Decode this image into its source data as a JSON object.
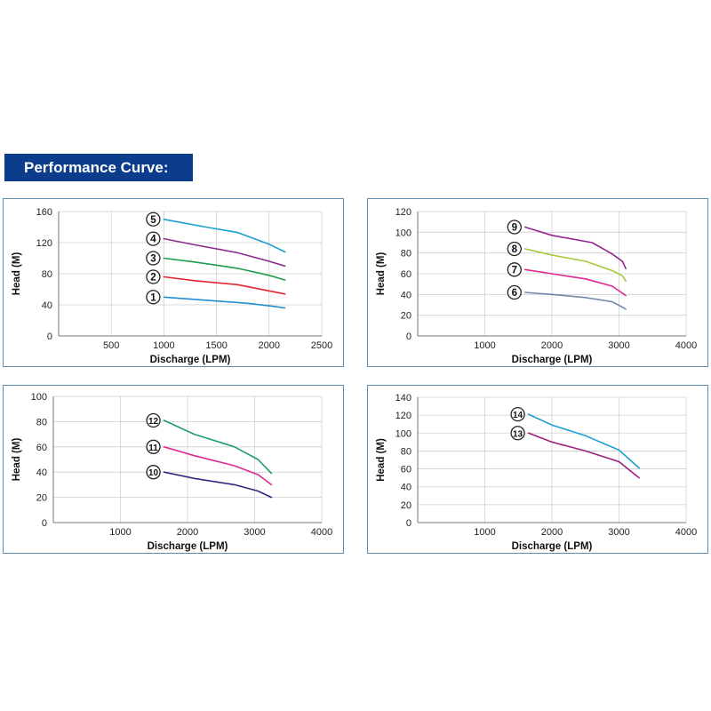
{
  "header": {
    "title": "Performance Curve:"
  },
  "chart_data": [
    {
      "type": "line",
      "xlabel": "Discharge (LPM)",
      "ylabel": "Head (M)",
      "xlim": [
        0,
        2500
      ],
      "ylim": [
        0,
        160
      ],
      "xticks": [
        0,
        500,
        1000,
        1500,
        2000,
        2500
      ],
      "xtick_labels": [
        "",
        "500",
        "1000",
        "1500",
        "2000",
        "2500"
      ],
      "yticks": [
        0,
        40,
        80,
        120,
        160
      ],
      "ytick_labels": [
        "0",
        "40",
        "80",
        "120",
        "160"
      ],
      "grid": true,
      "series": [
        {
          "name": "1",
          "color": "#1f8fd1",
          "x": [
            1000,
            1400,
            1800,
            2050,
            2150
          ],
          "y": [
            50,
            46,
            42,
            38,
            36
          ]
        },
        {
          "name": "2",
          "color": "#e3262e",
          "x": [
            1000,
            1300,
            1700,
            2000,
            2150
          ],
          "y": [
            76,
            71,
            66,
            58,
            54
          ]
        },
        {
          "name": "3",
          "color": "#1b9e4b",
          "x": [
            1000,
            1300,
            1700,
            2000,
            2150
          ],
          "y": [
            100,
            95,
            87,
            78,
            72
          ]
        },
        {
          "name": "4",
          "color": "#8e2a8c",
          "x": [
            1000,
            1300,
            1700,
            2000,
            2150
          ],
          "y": [
            125,
            117,
            107,
            96,
            90
          ]
        },
        {
          "name": "5",
          "color": "#1aa0cf",
          "x": [
            1000,
            1400,
            1700,
            2000,
            2150
          ],
          "y": [
            150,
            140,
            133,
            118,
            108
          ]
        }
      ]
    },
    {
      "type": "line",
      "xlabel": "Discharge (LPM)",
      "ylabel": "Head (M)",
      "xlim": [
        0,
        4000
      ],
      "ylim": [
        0,
        120
      ],
      "xticks": [
        0,
        1000,
        2000,
        3000,
        4000
      ],
      "xtick_labels": [
        "",
        "1000",
        "2000",
        "3000",
        "4000"
      ],
      "yticks": [
        0,
        20,
        40,
        60,
        80,
        100,
        120
      ],
      "ytick_labels": [
        "0",
        "20",
        "40",
        "60",
        "80",
        "100",
        "120"
      ],
      "grid": true,
      "series": [
        {
          "name": "6",
          "color": "#7288a8",
          "x": [
            1600,
            2000,
            2500,
            2900,
            3100
          ],
          "y": [
            42,
            40,
            37,
            33,
            26
          ]
        },
        {
          "name": "7",
          "color": "#e0278f",
          "x": [
            1600,
            2000,
            2500,
            2900,
            3100
          ],
          "y": [
            64,
            60,
            55,
            48,
            39
          ]
        },
        {
          "name": "8",
          "color": "#a4c936",
          "x": [
            1600,
            2000,
            2500,
            2900,
            3050,
            3100
          ],
          "y": [
            84,
            78,
            72,
            63,
            58,
            53
          ]
        },
        {
          "name": "9",
          "color": "#96258e",
          "x": [
            1600,
            2000,
            2600,
            2900,
            3050,
            3100
          ],
          "y": [
            105,
            97,
            90,
            79,
            72,
            65
          ]
        }
      ]
    },
    {
      "type": "line",
      "xlabel": "Discharge (LPM)",
      "ylabel": "Head (M)",
      "xlim": [
        0,
        4000
      ],
      "ylim": [
        0,
        100
      ],
      "xticks": [
        0,
        1000,
        2000,
        3000,
        4000
      ],
      "xtick_labels": [
        "",
        "1000",
        "2000",
        "3000",
        "4000"
      ],
      "yticks": [
        0,
        20,
        40,
        60,
        80,
        100
      ],
      "ytick_labels": [
        "0",
        "20",
        "40",
        "60",
        "80",
        "100"
      ],
      "grid": true,
      "series": [
        {
          "name": "10",
          "color": "#2e2a80",
          "x": [
            1650,
            2100,
            2700,
            3050,
            3250
          ],
          "y": [
            40,
            35,
            30,
            25,
            20
          ]
        },
        {
          "name": "11",
          "color": "#e0278f",
          "x": [
            1650,
            2100,
            2700,
            3050,
            3250
          ],
          "y": [
            60,
            53,
            45,
            38,
            30
          ]
        },
        {
          "name": "12",
          "color": "#1b9e6a",
          "x": [
            1650,
            2100,
            2700,
            3050,
            3250
          ],
          "y": [
            81,
            70,
            60,
            50,
            39
          ]
        }
      ]
    },
    {
      "type": "line",
      "xlabel": "Discharge (LPM)",
      "ylabel": "Head (M)",
      "xlim": [
        0,
        4000
      ],
      "ylim": [
        0,
        140
      ],
      "xticks": [
        0,
        1000,
        2000,
        3000,
        4000
      ],
      "xtick_labels": [
        "",
        "1000",
        "2000",
        "3000",
        "4000"
      ],
      "yticks": [
        0,
        20,
        40,
        60,
        80,
        100,
        120,
        140
      ],
      "ytick_labels": [
        "0",
        "20",
        "40",
        "60",
        "80",
        "100",
        "120",
        "140"
      ],
      "grid": true,
      "series": [
        {
          "name": "13",
          "color": "#9d1f80",
          "x": [
            1650,
            2000,
            2500,
            3000,
            3300
          ],
          "y": [
            100,
            90,
            80,
            68,
            50
          ]
        },
        {
          "name": "14",
          "color": "#1a9fd0",
          "x": [
            1650,
            2000,
            2500,
            3000,
            3300
          ],
          "y": [
            121,
            109,
            97,
            81,
            61
          ]
        }
      ]
    }
  ]
}
